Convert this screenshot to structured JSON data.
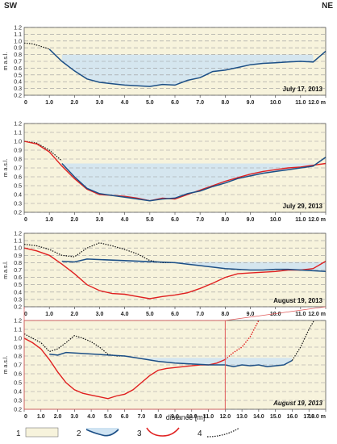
{
  "orientation": {
    "left": "SW",
    "right": "NE"
  },
  "xlabel": "distance  [m]",
  "colors": {
    "sediment": "#f7f3dc",
    "water": "#cfe3f2",
    "profile_blue": "#1c4f86",
    "profile_red": "#e02020",
    "profile_dotted": "#111111",
    "zoom_line": "#e05a5a",
    "grid": "#9a9a9a"
  },
  "legend": [
    {
      "num": "1",
      "symbol": "sediment-fill"
    },
    {
      "num": "2",
      "symbol": "water-profile"
    },
    {
      "num": "3",
      "symbol": "red-profile"
    },
    {
      "num": "4",
      "symbol": "dotted-profile"
    }
  ],
  "chart_data": [
    {
      "type": "area",
      "date": "July 17, 2013",
      "ylabel": "m a.s.l.",
      "xlim": [
        0,
        12
      ],
      "ylim": [
        0.2,
        1.2
      ],
      "xticks": [
        "0",
        "1.0",
        "2.0",
        "3.0",
        "4.0",
        "5.0",
        "6.0",
        "7.0",
        "8.0",
        "9.0",
        "10.0",
        "11.0",
        "12.0 m"
      ],
      "yticks": [
        "0.2",
        "0.3",
        "0.4",
        "0.5",
        "0.6",
        "0.7",
        "0.8",
        "0.9",
        "1.0",
        "1.1",
        "1.2"
      ],
      "water_level": 0.8,
      "series": [
        {
          "style": "dotted",
          "x": [
            0,
            0.3,
            0.6,
            1.0
          ],
          "y": [
            0.97,
            0.96,
            0.93,
            0.88
          ]
        },
        {
          "style": "blue",
          "x": [
            1.0,
            1.5,
            2.0,
            2.5,
            3.0,
            3.5,
            4.0,
            4.5,
            5.0,
            5.5,
            6.0,
            6.5,
            7.0,
            7.5,
            8.0,
            8.5,
            9.0,
            9.5,
            10.0,
            10.5,
            11.0,
            11.5,
            12.0
          ],
          "y": [
            0.88,
            0.7,
            0.56,
            0.44,
            0.39,
            0.37,
            0.35,
            0.34,
            0.33,
            0.36,
            0.35,
            0.42,
            0.46,
            0.55,
            0.57,
            0.61,
            0.65,
            0.67,
            0.68,
            0.69,
            0.7,
            0.69,
            0.85
          ]
        }
      ]
    },
    {
      "type": "area",
      "date": "July 29, 2013",
      "ylabel": "m a.s.l.",
      "xlim": [
        0,
        12
      ],
      "ylim": [
        0.2,
        1.2
      ],
      "xticks": [
        "0",
        "1.0",
        "2.0",
        "3.0",
        "4.0",
        "5.0",
        "6.0",
        "7.0",
        "8.0",
        "9.0",
        "10.0",
        "11.0",
        "12.0 m"
      ],
      "yticks": [
        "0.2",
        "0.3",
        "0.4",
        "0.5",
        "0.6",
        "0.7",
        "0.8",
        "0.9",
        "1.0",
        "1.1",
        "1.2"
      ],
      "water_level": 0.75,
      "series": [
        {
          "style": "dotted",
          "x": [
            0,
            0.5,
            1.0,
            1.5
          ],
          "y": [
            1.0,
            0.98,
            0.9,
            0.78
          ]
        },
        {
          "style": "red",
          "x": [
            0,
            0.5,
            1.0,
            1.5,
            2.0,
            2.5,
            3.0,
            3.5,
            4.0,
            4.5,
            5.0,
            5.5,
            6.0,
            6.5,
            7.0,
            7.5,
            8.0,
            8.5,
            9.0,
            9.5,
            10.0,
            10.5,
            11.0,
            11.5,
            12.0
          ],
          "y": [
            1.0,
            0.97,
            0.88,
            0.72,
            0.58,
            0.46,
            0.4,
            0.39,
            0.38,
            0.36,
            0.33,
            0.36,
            0.35,
            0.4,
            0.45,
            0.5,
            0.55,
            0.59,
            0.63,
            0.66,
            0.68,
            0.7,
            0.71,
            0.73,
            0.75
          ]
        },
        {
          "style": "blue",
          "x": [
            1.5,
            2.0,
            2.5,
            3.0,
            3.5,
            4.0,
            4.5,
            5.0,
            5.5,
            6.0,
            6.5,
            7.0,
            7.5,
            8.0,
            8.5,
            9.0,
            9.5,
            10.0,
            10.5,
            11.0,
            11.5,
            12.0
          ],
          "y": [
            0.75,
            0.6,
            0.47,
            0.41,
            0.39,
            0.37,
            0.35,
            0.33,
            0.35,
            0.36,
            0.41,
            0.44,
            0.49,
            0.53,
            0.58,
            0.61,
            0.64,
            0.66,
            0.68,
            0.7,
            0.72,
            0.82
          ]
        }
      ]
    },
    {
      "type": "area",
      "date": "August 19, 2013",
      "ylabel": "m a.s.l.",
      "xlim": [
        0,
        12
      ],
      "ylim": [
        0.2,
        1.2
      ],
      "xticks": [
        "0",
        "1.0",
        "2.0",
        "3.0",
        "4.0",
        "5.0",
        "6.0",
        "7.0",
        "8.0",
        "9.0",
        "10.0",
        "11.0",
        "12.0 m"
      ],
      "yticks": [
        "0.2",
        "0.3",
        "0.4",
        "0.5",
        "0.6",
        "0.7",
        "0.8",
        "0.9",
        "1.0",
        "1.1",
        "1.2"
      ],
      "water_level": 0.81,
      "series": [
        {
          "style": "dotted",
          "x": [
            0,
            0.5,
            1.0,
            1.5,
            2.0,
            2.5,
            3.0,
            3.5,
            4.0,
            4.5,
            5.0,
            5.5,
            6.0
          ],
          "y": [
            1.05,
            1.03,
            0.98,
            0.9,
            0.88,
            1.0,
            1.07,
            1.03,
            0.98,
            0.92,
            0.83,
            0.8,
            0.8
          ]
        },
        {
          "style": "red",
          "x": [
            0,
            0.5,
            1.0,
            1.5,
            2.0,
            2.5,
            3.0,
            3.5,
            4.0,
            4.5,
            5.0,
            5.5,
            6.0,
            6.5,
            7.0,
            7.5,
            8.0,
            8.5,
            9.0,
            9.5,
            10.0,
            10.5,
            11.0,
            11.5,
            12.0
          ],
          "y": [
            1.0,
            0.96,
            0.9,
            0.78,
            0.65,
            0.5,
            0.42,
            0.38,
            0.37,
            0.34,
            0.31,
            0.34,
            0.36,
            0.39,
            0.45,
            0.52,
            0.6,
            0.65,
            0.66,
            0.67,
            0.68,
            0.7,
            0.7,
            0.72,
            0.82
          ]
        },
        {
          "style": "blue",
          "x": [
            1.5,
            2.0,
            2.5,
            6.0,
            6.5,
            7.0,
            7.5,
            8.0,
            8.5,
            9.0,
            9.5,
            10.0,
            10.5,
            11.0,
            11.5,
            12.0
          ],
          "y": [
            0.82,
            0.81,
            0.85,
            0.8,
            0.78,
            0.76,
            0.74,
            0.72,
            0.71,
            0.7,
            0.7,
            0.71,
            0.71,
            0.7,
            0.69,
            0.68
          ]
        }
      ]
    },
    {
      "type": "area",
      "date": "August 19, 2013",
      "ylabel": "m a.s.l.",
      "xlim": [
        0,
        18
      ],
      "ylim": [
        0.2,
        1.2
      ],
      "xticks": [
        "0",
        "1.0",
        "2.0",
        "3.0",
        "4.0",
        "5.0",
        "6.0",
        "7.0",
        "8.0",
        "9.0",
        "10.0",
        "11.0",
        "12.0",
        "13.0",
        "14.0",
        "15.0",
        "16.0",
        "17.0",
        "18.0 m"
      ],
      "yticks": [
        "0.2",
        "0.3",
        "0.4",
        "0.5",
        "0.6",
        "0.7",
        "0.8",
        "0.9",
        "1.0",
        "1.1",
        "1.2"
      ],
      "water_level": 0.78,
      "series": [
        {
          "style": "dotted",
          "x": [
            0,
            0.5,
            1.0,
            1.5,
            2.0,
            2.5,
            3.0,
            3.5,
            4.0,
            4.5,
            5.0,
            5.5,
            6.0
          ],
          "y": [
            1.05,
            1.0,
            0.95,
            0.85,
            0.88,
            0.95,
            1.03,
            1.0,
            0.96,
            0.9,
            0.82,
            0.8,
            0.8
          ]
        },
        {
          "style": "dotted",
          "x": [
            16.0,
            16.5,
            17.0,
            17.3
          ],
          "y": [
            0.75,
            0.9,
            1.1,
            1.2
          ]
        },
        {
          "style": "red",
          "x": [
            0,
            0.5,
            1.0,
            1.5,
            2.0,
            2.5,
            3.0,
            3.5,
            4.0,
            4.5,
            5.0,
            5.5,
            6.0,
            6.5,
            7.0,
            7.5,
            8.0,
            8.5,
            9.0,
            9.5,
            10.0,
            10.5,
            11.0,
            11.5,
            12.0
          ],
          "y": [
            1.0,
            0.95,
            0.88,
            0.76,
            0.62,
            0.5,
            0.42,
            0.38,
            0.36,
            0.34,
            0.32,
            0.35,
            0.37,
            0.42,
            0.5,
            0.58,
            0.64,
            0.66,
            0.67,
            0.68,
            0.69,
            0.7,
            0.7,
            0.72,
            0.76
          ]
        },
        {
          "style": "red-dotted",
          "x": [
            12.0,
            12.5,
            13.0,
            13.5,
            14.0
          ],
          "y": [
            0.76,
            0.84,
            0.9,
            1.02,
            1.2
          ]
        },
        {
          "style": "blue",
          "x": [
            1.5,
            2.0,
            2.5,
            6.0,
            7.0,
            8.0,
            9.0,
            10.0,
            11.0,
            12.0,
            12.5,
            13.0,
            13.5,
            14.0,
            14.5,
            15.0,
            15.5,
            16.0
          ],
          "y": [
            0.82,
            0.81,
            0.84,
            0.8,
            0.77,
            0.74,
            0.72,
            0.71,
            0.7,
            0.7,
            0.68,
            0.7,
            0.69,
            0.7,
            0.68,
            0.69,
            0.7,
            0.75
          ]
        }
      ]
    }
  ]
}
